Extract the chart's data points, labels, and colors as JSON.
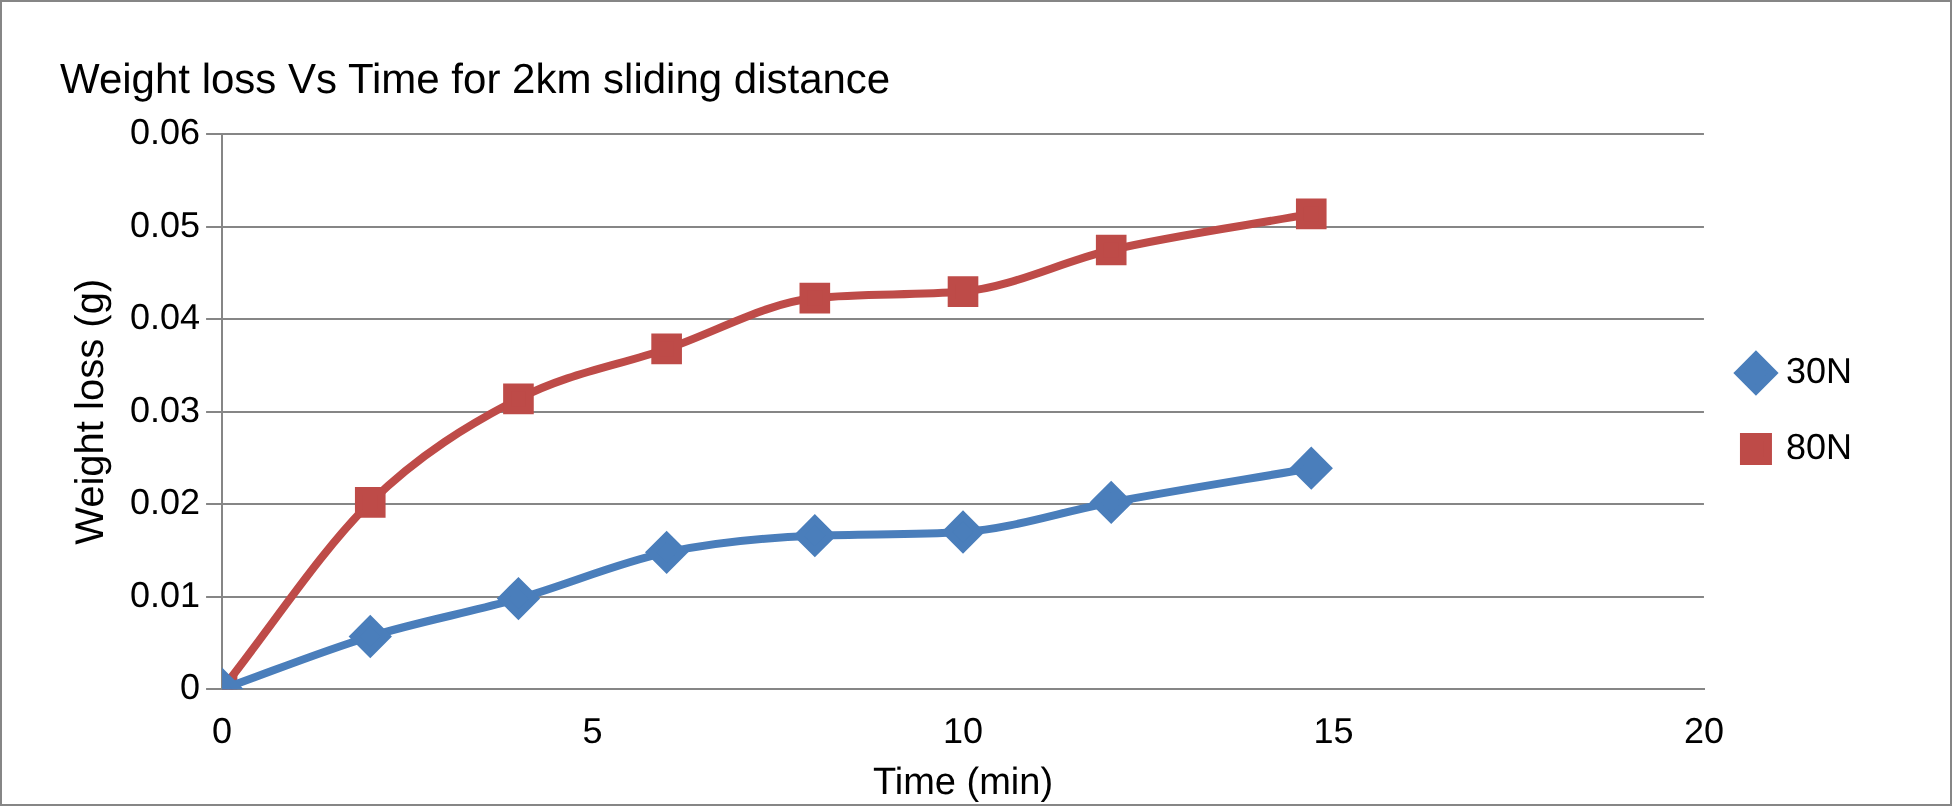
{
  "chart_data": {
    "type": "line",
    "title": "Weight loss Vs Time for 2km sliding distance",
    "xlabel": "Time (min)",
    "ylabel": "Weight loss (g)",
    "x": [
      0,
      2,
      4,
      6,
      8,
      10,
      12,
      14.7
    ],
    "series": [
      {
        "name": "30N",
        "color": "#4a7ebb",
        "marker": "diamond",
        "values": [
          0,
          0.0057,
          0.0098,
          0.0148,
          0.0166,
          0.017,
          0.0202,
          0.0239
        ]
      },
      {
        "name": "80N",
        "color": "#be4b48",
        "marker": "square",
        "values": [
          0,
          0.0202,
          0.0314,
          0.0368,
          0.0423,
          0.043,
          0.0475,
          0.0514
        ]
      }
    ],
    "xlim": [
      0,
      20
    ],
    "xticks": [
      0,
      5,
      10,
      15,
      20
    ],
    "ylim": [
      0,
      0.06
    ],
    "yticks": [
      0,
      0.01,
      0.02,
      0.03,
      0.04,
      0.05,
      0.06
    ],
    "grid": "y",
    "legend": "right",
    "line_style": "solid"
  }
}
